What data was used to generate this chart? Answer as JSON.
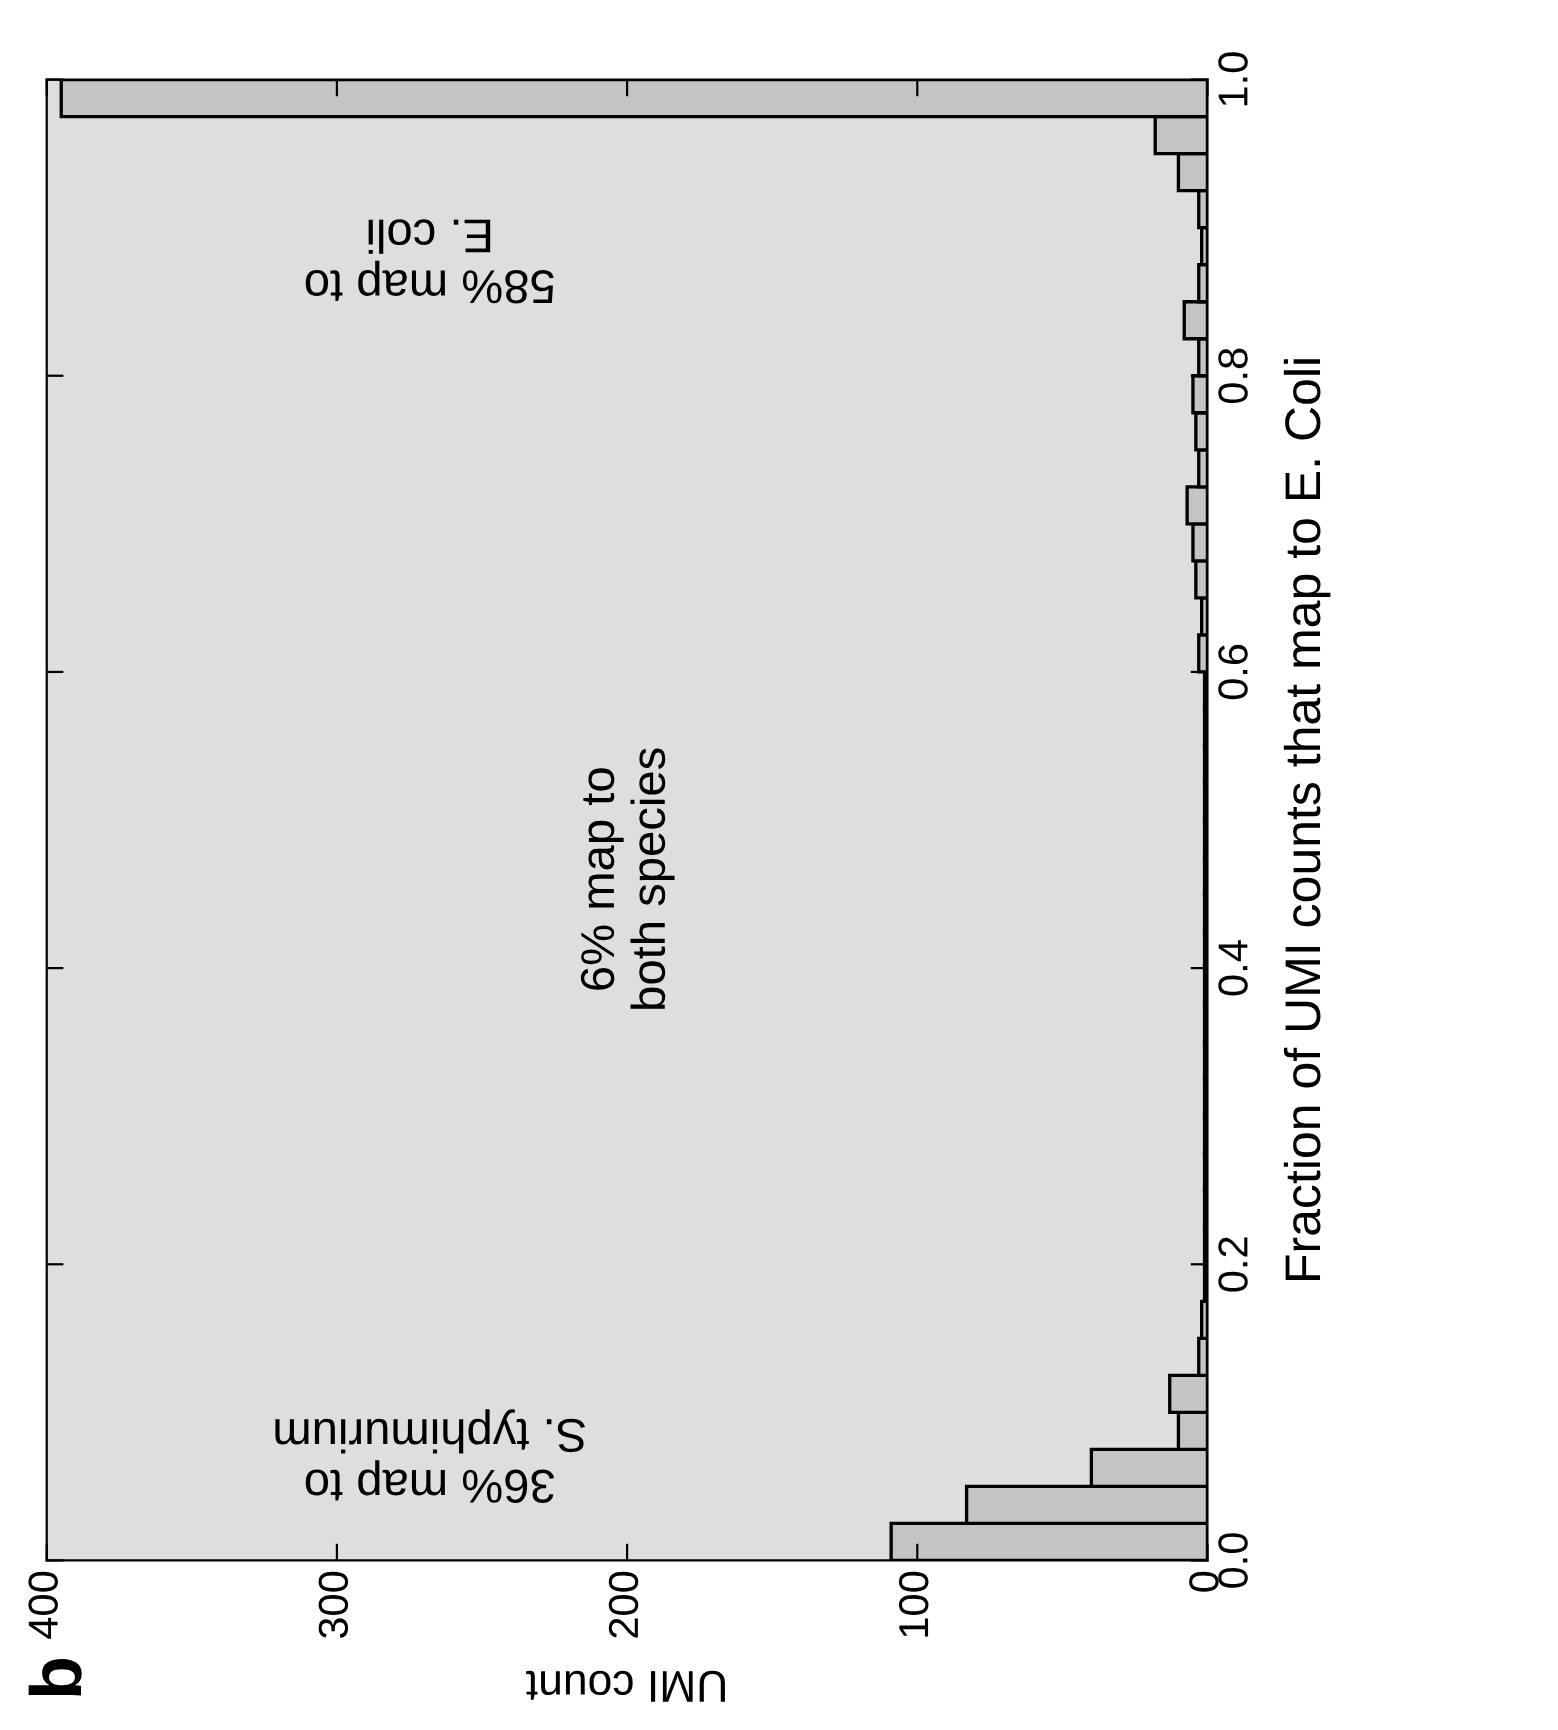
{
  "chart_data": {
    "type": "histogram",
    "orientation": "horizontal",
    "xlabel": "UMI count",
    "ylabel": "Fraction of UMI counts that map to E. Coli",
    "bins": [
      0,
      0.025,
      0.05,
      0.075,
      0.1,
      0.125,
      0.15,
      0.175,
      0.2,
      0.225,
      0.25,
      0.275,
      0.3,
      0.325,
      0.35,
      0.375,
      0.4,
      0.425,
      0.45,
      0.475,
      0.5,
      0.525,
      0.55,
      0.575,
      0.6,
      0.625,
      0.65,
      0.675,
      0.7,
      0.725,
      0.75,
      0.775,
      0.8,
      0.825,
      0.85,
      0.875,
      0.9,
      0.925,
      0.95,
      0.975,
      1.0
    ],
    "values": [
      109,
      83,
      40,
      10,
      13,
      3,
      2,
      1,
      1,
      1,
      1,
      1,
      1,
      1,
      1,
      1,
      1,
      1,
      1,
      1,
      1,
      1,
      1,
      1,
      3,
      2,
      4,
      5,
      7,
      3,
      4,
      5,
      3,
      8,
      3,
      2,
      3,
      10,
      18,
      395
    ],
    "color": "#c4c4c4",
    "xlim": [
      400,
      0
    ],
    "xticks": [
      400,
      300,
      200,
      100,
      0
    ],
    "ylim": [
      0,
      1
    ],
    "yticks": [
      {
        "value": 0,
        "label": "0.0"
      },
      0.2,
      0.4,
      0.6,
      0.8,
      {
        "value": 1,
        "label": "1.0"
      }
    ],
    "annotations": [
      "36% map to\nS. typhimurium",
      "6% map to\nboth species",
      "58% map to\nE. coli",
      "b"
    ]
  }
}
